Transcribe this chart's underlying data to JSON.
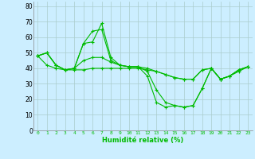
{
  "xlabel": "Humidité relative (%)",
  "background_color": "#cceeff",
  "grid_color": "#aacccc",
  "line_color": "#00bb00",
  "xlim": [
    -0.5,
    23.5
  ],
  "ylim": [
    0,
    83
  ],
  "xticks": [
    0,
    1,
    2,
    3,
    4,
    5,
    6,
    7,
    8,
    9,
    10,
    11,
    12,
    13,
    14,
    15,
    16,
    17,
    18,
    19,
    20,
    21,
    22,
    23
  ],
  "yticks": [
    0,
    10,
    20,
    30,
    40,
    50,
    60,
    70,
    80
  ],
  "series": [
    [
      48,
      50,
      42,
      39,
      40,
      56,
      57,
      69,
      47,
      42,
      41,
      41,
      35,
      18,
      15,
      16,
      15,
      16,
      27,
      40,
      33,
      35,
      39,
      41
    ],
    [
      48,
      50,
      42,
      39,
      40,
      45,
      47,
      47,
      44,
      42,
      41,
      41,
      40,
      38,
      36,
      34,
      33,
      33,
      39,
      40,
      33,
      35,
      39,
      41
    ],
    [
      48,
      42,
      40,
      39,
      39,
      39,
      40,
      40,
      40,
      40,
      40,
      40,
      39,
      38,
      36,
      34,
      33,
      33,
      39,
      40,
      33,
      35,
      38,
      41
    ],
    [
      48,
      50,
      42,
      39,
      40,
      56,
      64,
      65,
      45,
      42,
      41,
      41,
      38,
      26,
      18,
      16,
      15,
      16,
      27,
      40,
      33,
      35,
      39,
      41
    ]
  ]
}
